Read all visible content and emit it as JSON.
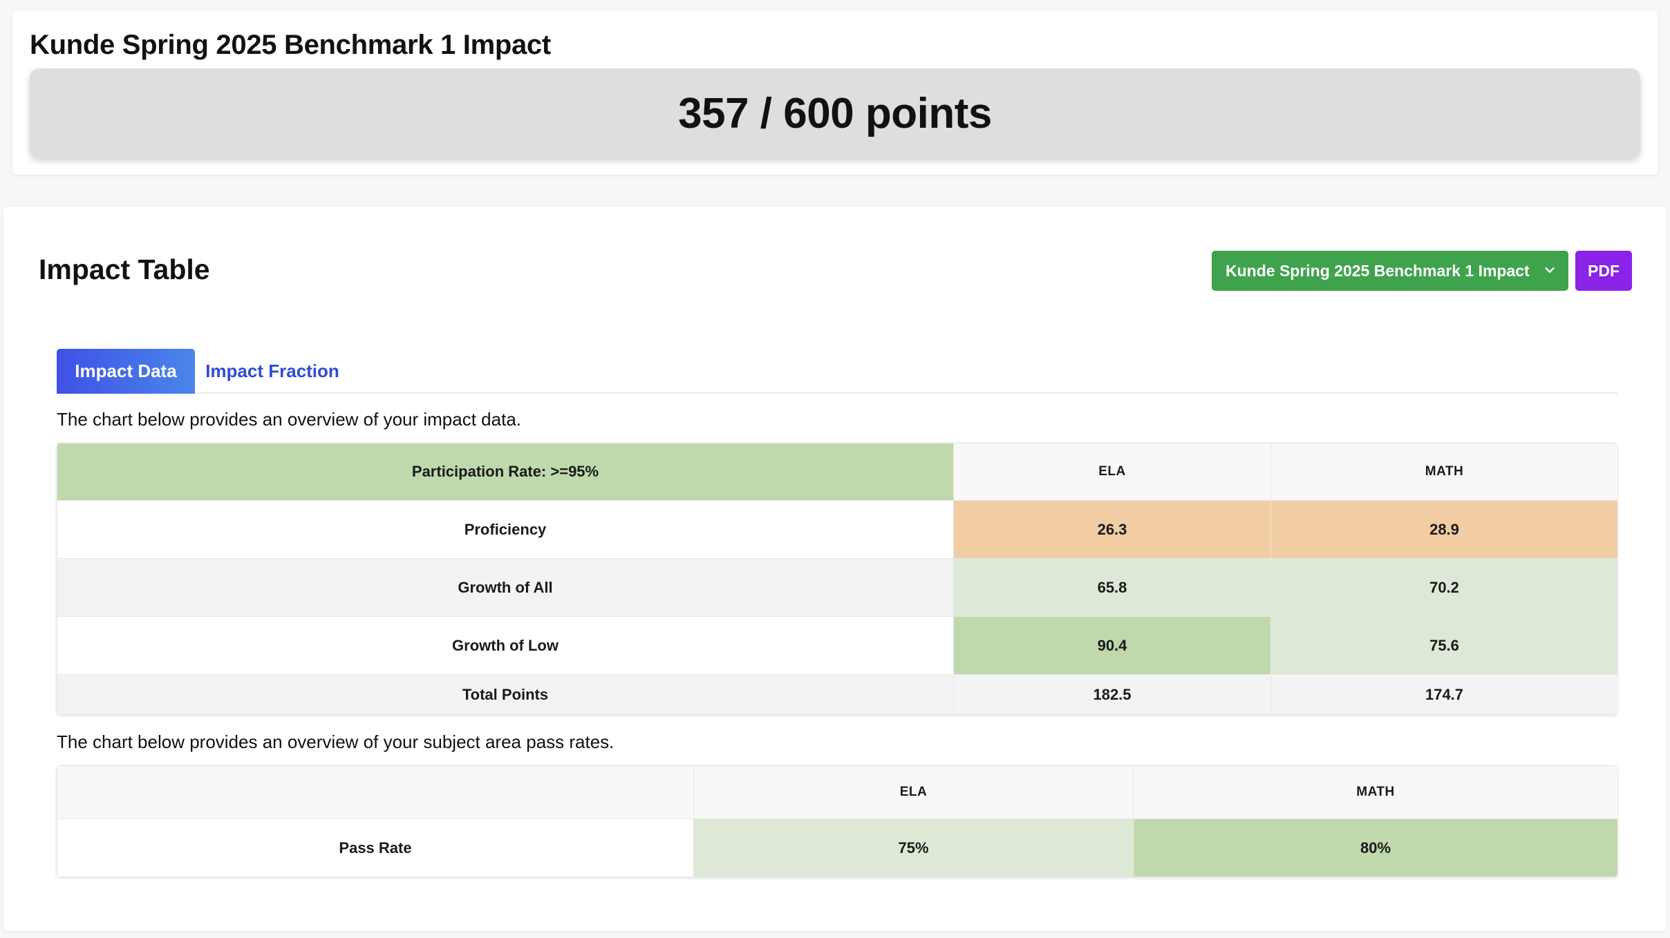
{
  "header": {
    "title": "Kunde Spring 2025 Benchmark 1 Impact",
    "score": "357 / 600 points"
  },
  "impact_section": {
    "title": "Impact Table",
    "report_select": {
      "selected": "Kunde Spring 2025 Benchmark 1 Impact"
    },
    "pdf_label": "PDF",
    "tabs": [
      {
        "label": "Impact Data",
        "active": true
      },
      {
        "label": "Impact Fraction",
        "active": false
      }
    ]
  },
  "impact_data": {
    "caption": "The chart below provides an overview of your impact data.",
    "header": {
      "label": "Participation Rate: >=95%",
      "col1": "ELA",
      "col2": "MATH"
    },
    "rows": [
      {
        "label": "Proficiency",
        "ela": "26.3",
        "math": "28.9"
      },
      {
        "label": "Growth of All",
        "ela": "65.8",
        "math": "70.2"
      },
      {
        "label": "Growth of Low",
        "ela": "90.4",
        "math": "75.6"
      },
      {
        "label": "Total Points",
        "ela": "182.5",
        "math": "174.7"
      }
    ]
  },
  "pass_rates": {
    "caption": "The chart below provides an overview of your subject area pass rates.",
    "header": {
      "label": "",
      "col1": "ELA",
      "col2": "MATH"
    },
    "rows": [
      {
        "label": "Pass Rate",
        "ela": "75%",
        "math": "80%"
      }
    ]
  },
  "colors": {
    "green_button": "#3fa34d",
    "purple_button": "#8a22e8",
    "active_tab": "#3f51e6",
    "inactive_tab_text": "#2f4bd8",
    "orange_cell": "#f2cda3",
    "light_green_cell": "#dde9d6",
    "mid_green_cell": "#bfd9ad"
  },
  "icons": {
    "select_chevron": "chevron-down-icon"
  }
}
